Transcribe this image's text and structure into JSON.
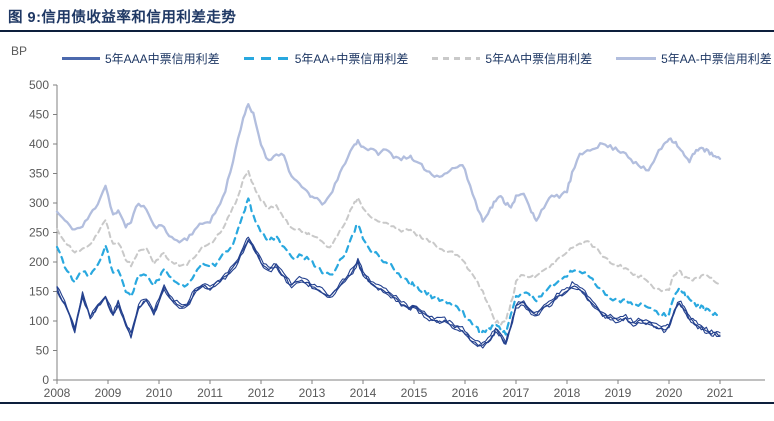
{
  "figure": {
    "title": "图 9:信用债收益率和信用利差走势",
    "y_unit_label": "BP"
  },
  "legend": {
    "items": [
      {
        "label": "5年AAA中票信用利差",
        "style": "solid",
        "color": "#24418e"
      },
      {
        "label": "5年AA+中票信用利差",
        "style": "dashed",
        "color": "#29a8df"
      },
      {
        "label": "5年AA中票信用利差",
        "style": "dashed",
        "color": "#c9c9c9"
      },
      {
        "label": "5年AA-中票信用利差",
        "style": "solid",
        "color": "#b2bede"
      }
    ]
  },
  "chart_data": {
    "type": "line",
    "title": "信用债收益率和信用利差走势",
    "xlabel": "",
    "ylabel": "BP",
    "ylim": [
      0,
      500
    ],
    "y_ticks": [
      0,
      50,
      100,
      150,
      200,
      250,
      300,
      350,
      400,
      450,
      500
    ],
    "x_ticks": [
      "2008",
      "2009",
      "2010",
      "2011",
      "2012",
      "2013",
      "2014",
      "2015",
      "2016",
      "2017",
      "2018",
      "2019",
      "2020",
      "2021"
    ],
    "grid": false,
    "legend_position": "top",
    "x": [
      2008.0,
      2008.2,
      2008.35,
      2008.5,
      2008.65,
      2008.8,
      2008.95,
      2009.1,
      2009.2,
      2009.35,
      2009.45,
      2009.6,
      2009.75,
      2009.9,
      2010.1,
      2010.25,
      2010.4,
      2010.55,
      2010.7,
      2010.85,
      2011.0,
      2011.15,
      2011.3,
      2011.5,
      2011.65,
      2011.75,
      2011.85,
      2012.0,
      2012.15,
      2012.3,
      2012.45,
      2012.6,
      2012.75,
      2012.9,
      2013.0,
      2013.2,
      2013.35,
      2013.5,
      2013.65,
      2013.8,
      2013.9,
      2014.0,
      2014.15,
      2014.3,
      2014.45,
      2014.6,
      2014.75,
      2014.9,
      2015.0,
      2015.2,
      2015.4,
      2015.6,
      2015.8,
      2015.95,
      2016.1,
      2016.25,
      2016.35,
      2016.5,
      2016.6,
      2016.7,
      2016.8,
      2016.9,
      2017.0,
      2017.15,
      2017.3,
      2017.4,
      2017.55,
      2017.7,
      2017.85,
      2018.0,
      2018.1,
      2018.25,
      2018.4,
      2018.55,
      2018.7,
      2018.85,
      2019.0,
      2019.15,
      2019.3,
      2019.45,
      2019.6,
      2019.75,
      2019.9,
      2020.0,
      2020.1,
      2020.2,
      2020.3,
      2020.4,
      2020.5,
      2020.6,
      2020.7,
      2020.8,
      2020.9,
      2021.0
    ],
    "series": [
      {
        "name": "5年AAA中票信用利差",
        "color": "#24418e",
        "dash": "solid",
        "values": [
          155,
          120,
          85,
          145,
          105,
          125,
          140,
          110,
          130,
          95,
          75,
          125,
          135,
          113,
          155,
          135,
          125,
          125,
          150,
          160,
          155,
          165,
          175,
          195,
          220,
          240,
          225,
          200,
          185,
          195,
          175,
          160,
          170,
          165,
          160,
          150,
          140,
          155,
          170,
          185,
          200,
          180,
          165,
          155,
          150,
          140,
          130,
          120,
          125,
          110,
          100,
          100,
          90,
          85,
          70,
          60,
          57,
          70,
          85,
          75,
          62,
          90,
          125,
          130,
          115,
          110,
          125,
          130,
          145,
          150,
          160,
          155,
          140,
          125,
          110,
          105,
          100,
          105,
          95,
          100,
          95,
          90,
          85,
          90,
          115,
          130,
          120,
          105,
          95,
          90,
          85,
          80,
          78,
          76
        ]
      },
      {
        "name": "5年AA+中票信用利差",
        "color": "#29a8df",
        "dash": "dashed",
        "values": [
          225,
          185,
          165,
          185,
          175,
          195,
          230,
          180,
          185,
          150,
          140,
          175,
          180,
          160,
          185,
          170,
          165,
          160,
          180,
          195,
          190,
          200,
          215,
          240,
          280,
          305,
          280,
          250,
          235,
          245,
          225,
          205,
          210,
          205,
          200,
          185,
          175,
          195,
          215,
          245,
          265,
          240,
          220,
          210,
          200,
          190,
          175,
          165,
          160,
          150,
          140,
          135,
          125,
          115,
          100,
          85,
          80,
          90,
          95,
          85,
          80,
          110,
          140,
          150,
          140,
          135,
          150,
          160,
          170,
          175,
          185,
          185,
          180,
          165,
          150,
          140,
          135,
          135,
          125,
          130,
          120,
          115,
          110,
          115,
          140,
          155,
          145,
          135,
          130,
          125,
          120,
          115,
          110,
          108
        ]
      },
      {
        "name": "5年AA中票信用利差",
        "color": "#c9c9c9",
        "dash": "dashed",
        "values": [
          255,
          230,
          215,
          225,
          230,
          250,
          270,
          230,
          235,
          205,
          195,
          220,
          225,
          200,
          215,
          200,
          195,
          195,
          210,
          225,
          230,
          245,
          265,
          300,
          340,
          355,
          330,
          305,
          290,
          295,
          275,
          255,
          255,
          250,
          245,
          235,
          225,
          245,
          265,
          295,
          310,
          290,
          275,
          270,
          265,
          260,
          250,
          255,
          250,
          240,
          230,
          220,
          215,
          205,
          185,
          165,
          150,
          120,
          100,
          95,
          100,
          130,
          165,
          180,
          175,
          175,
          185,
          195,
          205,
          215,
          225,
          230,
          235,
          225,
          210,
          200,
          195,
          190,
          180,
          175,
          165,
          155,
          150,
          155,
          180,
          185,
          175,
          170,
          170,
          175,
          180,
          175,
          168,
          162
        ]
      },
      {
        "name": "5年AA-中票信用利差",
        "color": "#b2bede",
        "dash": "solid",
        "values": [
          285,
          265,
          255,
          260,
          280,
          300,
          330,
          280,
          285,
          260,
          270,
          300,
          290,
          260,
          260,
          240,
          235,
          240,
          255,
          265,
          270,
          290,
          320,
          390,
          445,
          465,
          450,
          400,
          370,
          385,
          380,
          345,
          330,
          320,
          310,
          300,
          310,
          340,
          370,
          395,
          405,
          395,
          390,
          385,
          390,
          380,
          375,
          380,
          370,
          360,
          345,
          350,
          360,
          365,
          330,
          290,
          272,
          290,
          305,
          310,
          300,
          295,
          310,
          315,
          285,
          272,
          295,
          310,
          312,
          320,
          350,
          380,
          390,
          395,
          400,
          395,
          390,
          385,
          370,
          360,
          355,
          380,
          400,
          410,
          405,
          395,
          380,
          370,
          385,
          395,
          390,
          385,
          378,
          375
        ]
      }
    ]
  }
}
